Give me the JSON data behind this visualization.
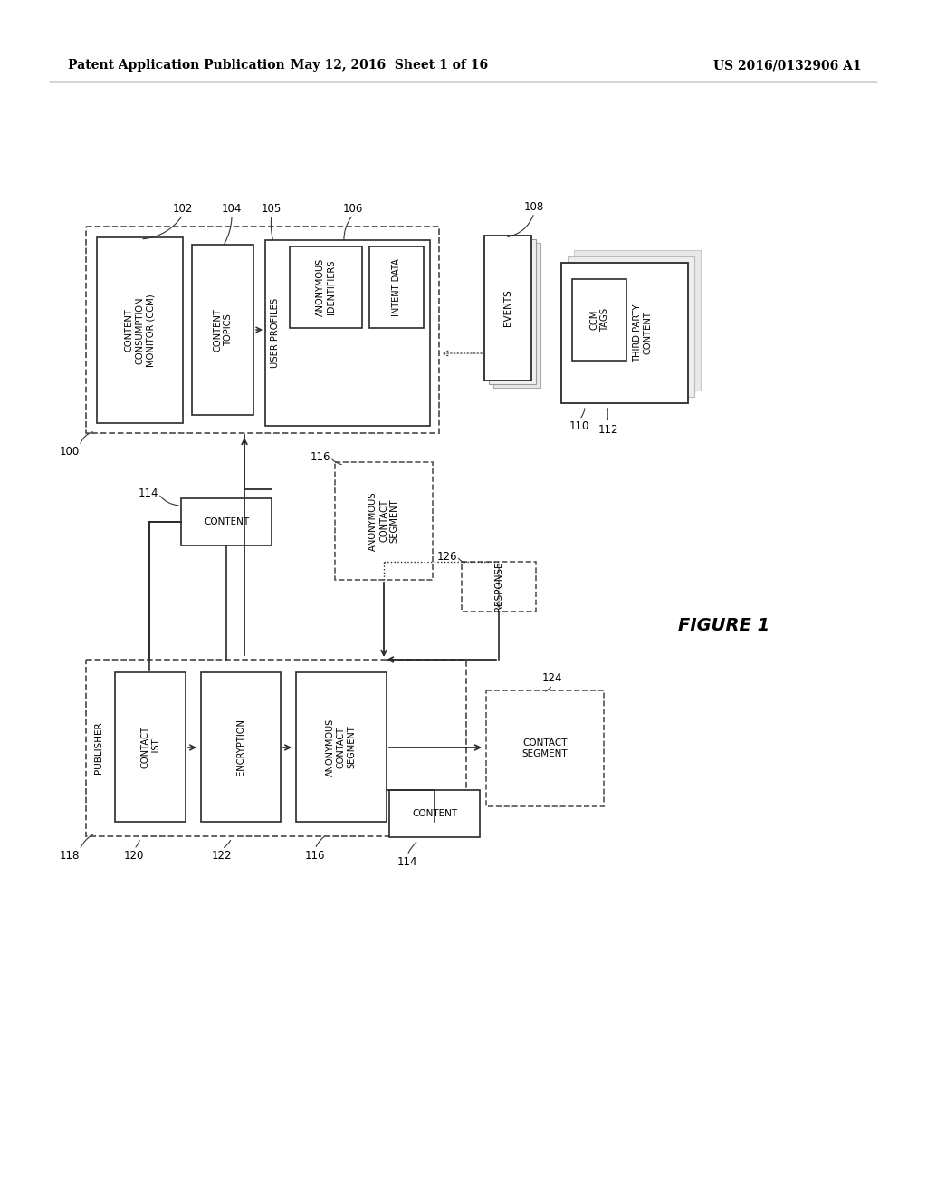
{
  "title_left": "Patent Application Publication",
  "title_center": "May 12, 2016  Sheet 1 of 16",
  "title_right": "US 2016/0132906 A1",
  "figure_label": "FIGURE 1",
  "bg_color": "#ffffff",
  "texts": {
    "ccm": "CONTENT\nCONSUMPTION\nMONITOR (CCM)",
    "content_topics": "CONTENT\nTOPICS",
    "user_profiles": "USER PROFILES",
    "anon_id": "ANONYMOUS\nIDENTIFIERS",
    "intent_data": "INTENT DATA",
    "events": "EVENTS",
    "third_party": "THIRD PARTY\nCONTENT",
    "ccm_tags": "CCM\nTAGS",
    "anon_contact_seg": "ANONYMOUS\nCONTACT\nSEGMENT",
    "content": "CONTENT",
    "publisher": "PUBLISHER",
    "contact_list": "CONTACT\nLIST",
    "encryption": "ENCRYPTION",
    "response": "RESPONSE",
    "contact_segment": "CONTACT\nSEGMENT"
  }
}
